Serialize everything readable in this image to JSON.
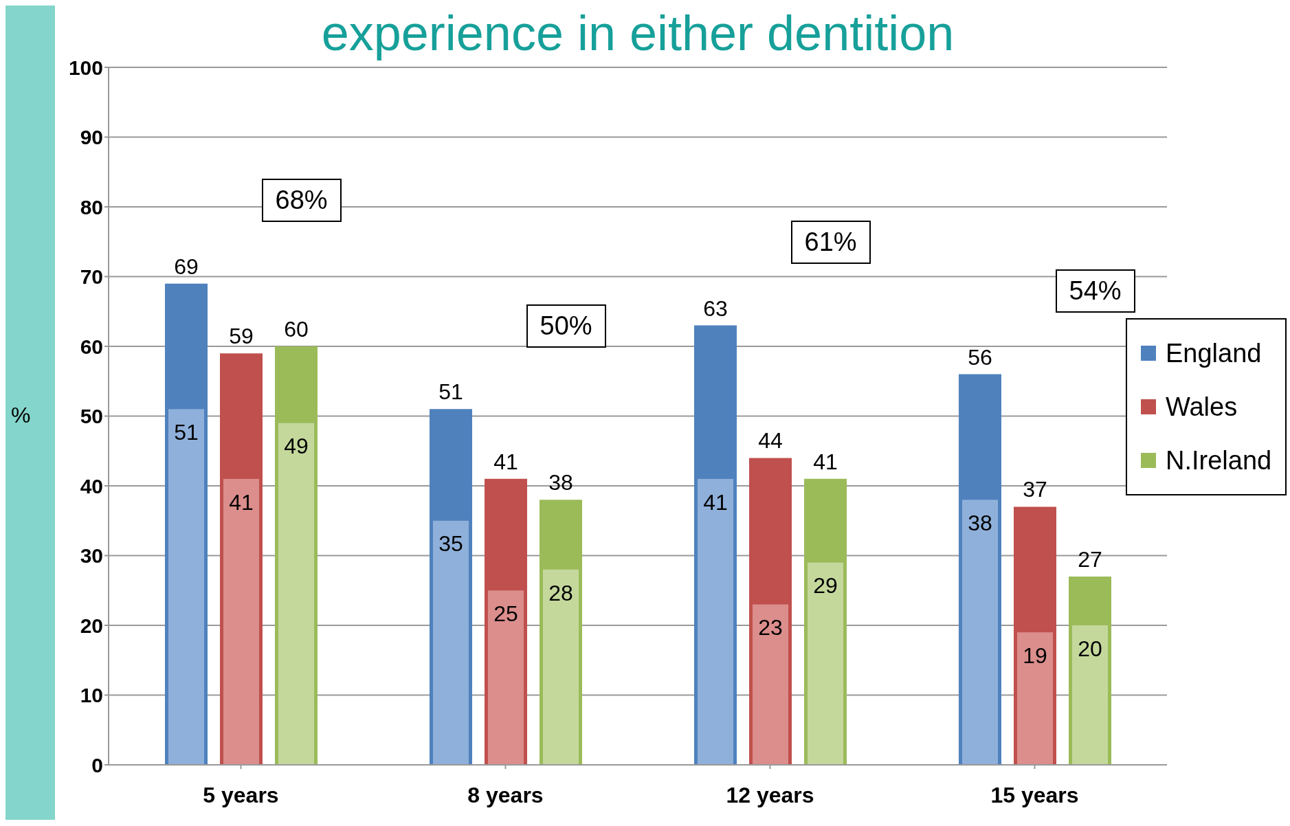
{
  "chart_data": {
    "type": "bar",
    "title": "experience in either dentition",
    "ylabel": "%",
    "categories": [
      "5 years",
      "8 years",
      "12 years",
      "15 years"
    ],
    "series": [
      {
        "name": "England",
        "color": "#4f81bd",
        "values": [
          69,
          51,
          63,
          56
        ]
      },
      {
        "name": "Wales",
        "color": "#c0504d",
        "values": [
          59,
          41,
          44,
          37
        ]
      },
      {
        "name": "N.Ireland",
        "color": "#9bbb59",
        "values": [
          60,
          38,
          41,
          27
        ]
      },
      {
        "color": "#8fb0da",
        "values": [
          51,
          35,
          41,
          38
        ]
      },
      {
        "color": "#db8e8c",
        "values": [
          41,
          25,
          23,
          19
        ]
      },
      {
        "color": "#c4d89c",
        "values": [
          49,
          28,
          29,
          20
        ]
      }
    ],
    "annotations": [
      "68%",
      "50%",
      "61%",
      "54%"
    ],
    "ylim": [
      0,
      100
    ],
    "yticks": [
      0,
      10,
      20,
      30,
      40,
      50,
      60,
      70,
      80,
      90,
      100
    ],
    "grid": "y",
    "legend": "right",
    "data_labels": true
  }
}
